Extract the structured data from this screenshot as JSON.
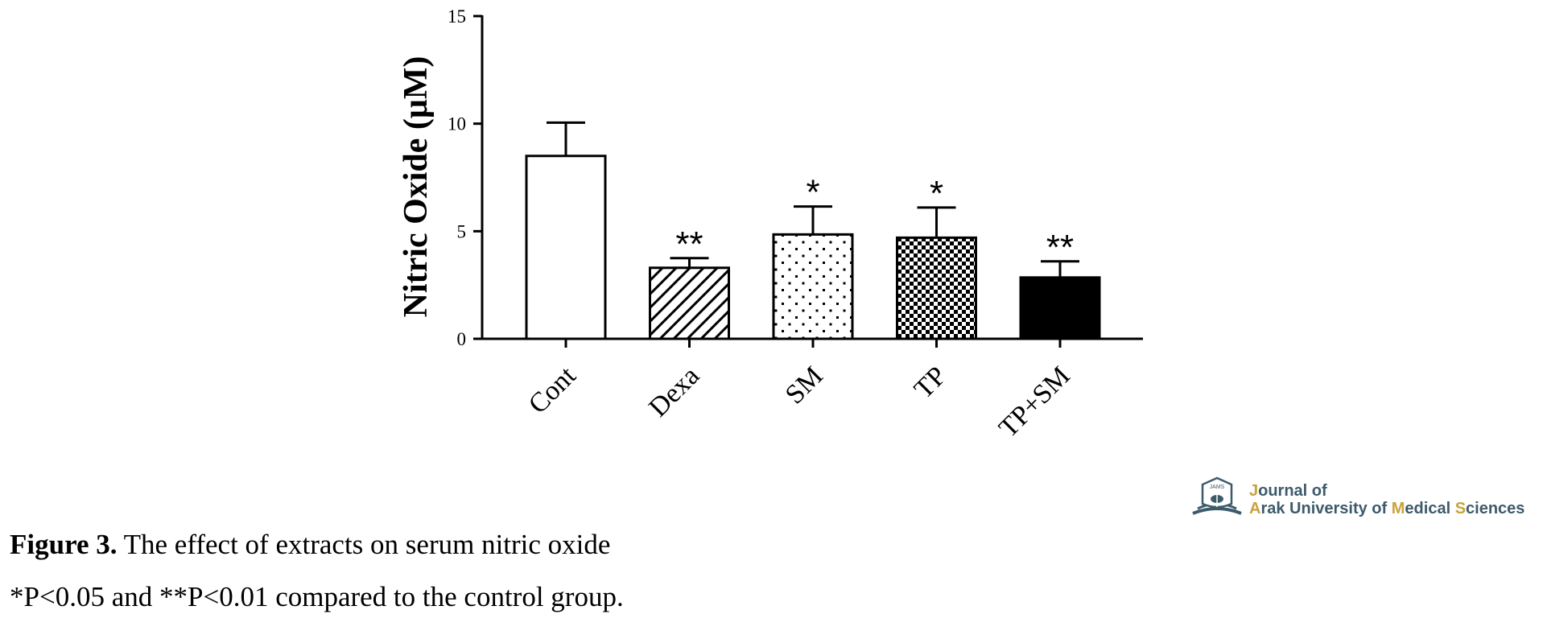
{
  "chart_data": {
    "type": "bar",
    "categories": [
      "Cont",
      "Dexa",
      "SM",
      "TP",
      "TP+SM"
    ],
    "values": [
      8.5,
      3.3,
      4.85,
      4.7,
      2.85
    ],
    "error_upper": [
      10.05,
      3.75,
      6.15,
      6.1,
      3.6
    ],
    "significance": [
      "",
      "**",
      "*",
      "*",
      "**"
    ],
    "patterns": [
      "none",
      "diagonal",
      "dots",
      "checker",
      "solid"
    ],
    "ylabel": "Nitric Oxide (μM)",
    "xlabel": "",
    "ylim": [
      0,
      15
    ],
    "yticks": [
      0,
      5,
      10,
      15
    ],
    "grid": false
  },
  "caption": {
    "figure_label": "Figure 3.",
    "figure_text": " The effect of extracts on serum nitric oxide",
    "footnote": "*P<0.05 and **P<0.01 compared to the control group."
  },
  "logo": {
    "emblem_text": "JAMS",
    "line1_accent": "J",
    "line1_rest": "ournal of",
    "line2_a": "A",
    "line2_b": "rak University of ",
    "line2_c": "M",
    "line2_d": "edical ",
    "line2_e": "S",
    "line2_f": "ciences",
    "text_color": "#3d5a6b",
    "accent_color": "#c9a23a"
  }
}
